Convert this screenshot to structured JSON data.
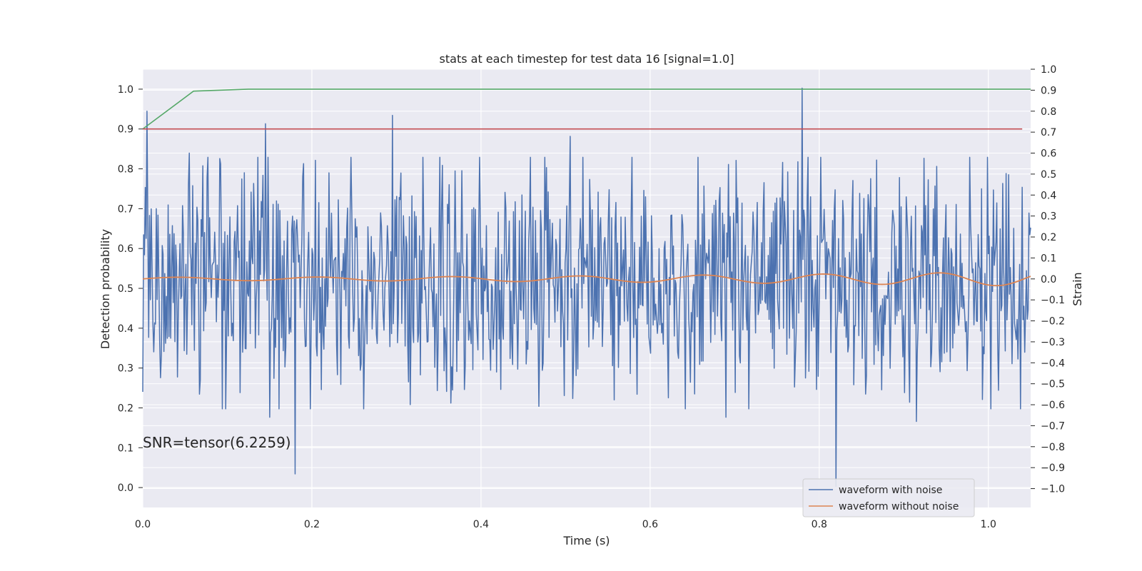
{
  "chart_data": {
    "type": "line",
    "title": "stats at each timestep for test data 16 [signal=1.0]",
    "xlabel": "Time (s)",
    "ylabel_left": "Detection probability",
    "ylabel_right": "Strain",
    "xlim": [
      0.0,
      1.05
    ],
    "ylim_left": [
      -0.05,
      1.05
    ],
    "ylim_right": [
      -1.09,
      1.0
    ],
    "x_ticks": [
      "0.0",
      "0.2",
      "0.4",
      "0.6",
      "0.8",
      "1.0"
    ],
    "y_ticks_left": [
      "0.0",
      "0.1",
      "0.2",
      "0.3",
      "0.4",
      "0.5",
      "0.6",
      "0.7",
      "0.8",
      "0.9",
      "1.0"
    ],
    "y_ticks_right": [
      "1.0",
      "0.9",
      "0.8",
      "0.7",
      "0.6",
      "0.5",
      "0.4",
      "0.3",
      "0.2",
      "0.1",
      "0.0",
      "−0.1",
      "−0.2",
      "−0.3",
      "−0.4",
      "−0.5",
      "−0.6",
      "−0.7",
      "−0.8",
      "−0.9",
      "−1.0"
    ],
    "annotation": "SNR=tensor(6.2259)",
    "grid": true,
    "legend_position": "lower-right",
    "series": [
      {
        "name": "waveform with noise",
        "axis": "right",
        "color": "#4c72b0",
        "noise": {
          "x_start": 0.0,
          "x_end": 1.05,
          "count": 1050,
          "seed": 16,
          "amplitude": 0.28,
          "spikes": [
            {
              "x": 0.005,
              "y": 0.8
            },
            {
              "x": 0.055,
              "y": 0.6
            },
            {
              "x": 0.145,
              "y": 0.74
            },
            {
              "x": 0.15,
              "y": -0.66
            },
            {
              "x": 0.18,
              "y": -0.93
            },
            {
              "x": 0.19,
              "y": 0.55
            },
            {
              "x": 0.295,
              "y": 0.78
            },
            {
              "x": 0.505,
              "y": 0.68
            },
            {
              "x": 0.585,
              "y": -0.55
            },
            {
              "x": 0.78,
              "y": 0.91
            },
            {
              "x": 0.785,
              "y": -0.27
            },
            {
              "x": 0.82,
              "y": -0.99
            },
            {
              "x": 0.69,
              "y": -0.66
            },
            {
              "x": 0.915,
              "y": -0.68
            }
          ]
        }
      },
      {
        "name": "waveform without noise",
        "axis": "right",
        "color": "#dd8452",
        "chirp": {
          "x_start": 0.0,
          "x_end": 1.05,
          "amp_start": 0.008,
          "amp_end": 0.034,
          "phase_per_s": 37.0,
          "phase_growth": 5.0
        }
      },
      {
        "axis": "left",
        "color": "#55a868",
        "x": [
          0.0,
          0.06,
          0.125,
          1.05
        ],
        "y": [
          0.9,
          0.995,
          1.0,
          1.0
        ]
      },
      {
        "axis": "left",
        "color": "#c44e52",
        "x": [
          0.0,
          1.04
        ],
        "y": [
          0.9,
          0.9
        ]
      }
    ]
  }
}
